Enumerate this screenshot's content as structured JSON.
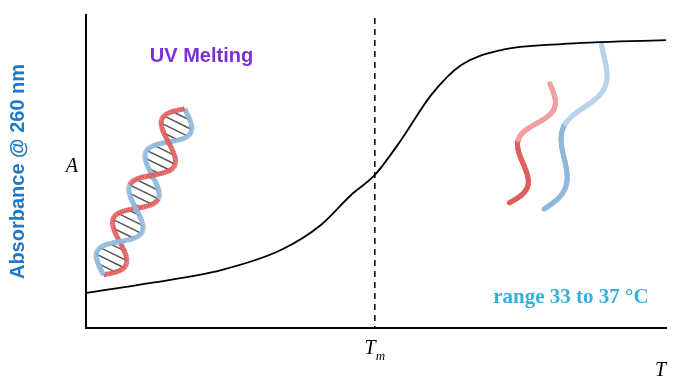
{
  "chart_data": {
    "type": "line",
    "title": "UV Melting",
    "x_label": "T",
    "y_label": "Absorbance @ 260 nm",
    "y_symbol": "A",
    "note": "range 33 to 37 °C",
    "x": [
      0,
      11.2,
      23.3,
      33.6,
      40.5,
      45.7,
      49.8,
      54.3,
      59.5,
      64.7,
      71.6,
      81.9,
      100
    ],
    "values": [
      11.2,
      14.4,
      18.5,
      24.9,
      32.9,
      42.5,
      48.9,
      60,
      74.4,
      84,
      88.8,
      90.7,
      92
    ],
    "color": "#000000",
    "line_style": "solid",
    "marker": "none",
    "xlim": [
      0,
      100
    ],
    "ylim": [
      0,
      100
    ],
    "xticks": [],
    "yticks": [],
    "tick_labels": false,
    "grid": false,
    "reference_line": {
      "x": 49.8,
      "label": "T",
      "subscript": "m",
      "line_style": "dashed"
    }
  }
}
